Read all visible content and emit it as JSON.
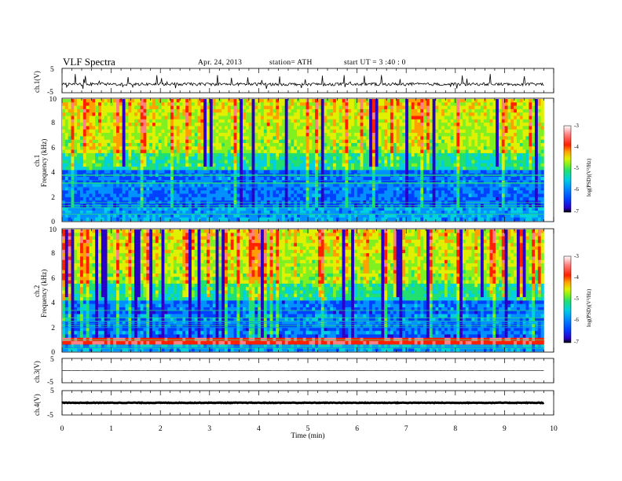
{
  "header": {
    "title": "VLF  Spectra",
    "date": "Apr. 24, 2013",
    "station": "station= ATH",
    "start": "start  UT  =   3  :40 : 0"
  },
  "colors": {
    "spectrum": [
      "#000000",
      "#2a00c8",
      "#0040ff",
      "#0090ff",
      "#00d0e0",
      "#20e070",
      "#80f020",
      "#e0f000",
      "#ffa000",
      "#ff2000",
      "#ff8080",
      "#ffffff"
    ]
  },
  "chart_data": [
    {
      "type": "line",
      "panel": "ch1",
      "ylabel": "ch.1(V)",
      "ylim": [
        -5,
        5
      ],
      "yticks": [
        "5",
        "-5"
      ],
      "x_unit": "min",
      "x_range": [
        0,
        9.8
      ],
      "baseline": -1.5
    },
    {
      "type": "heatmap",
      "panel": "ch1-spectrogram",
      "channel_label": "ch.1",
      "ylabel": "Frequency  (kHz)",
      "ylim": [
        0,
        10
      ],
      "yticks": [
        "0",
        "2",
        "4",
        "6",
        "8",
        "10"
      ],
      "x_range": [
        0,
        9.8
      ],
      "colorbar": {
        "label": "log(PSD)(V²/Hz)",
        "range": [
          -7,
          -3
        ],
        "ticks": [
          "-3",
          "-4",
          "-5",
          "-6",
          "-7"
        ]
      }
    },
    {
      "type": "heatmap",
      "panel": "ch2-spectrogram",
      "channel_label": "ch.2",
      "ylabel": "Frequency  (kHz)",
      "ylim": [
        0,
        10
      ],
      "yticks": [
        "0",
        "2",
        "4",
        "6",
        "8",
        "10"
      ],
      "x_range": [
        0,
        9.8
      ],
      "colorbar": {
        "label": "log(PSD)(V²/Hz)",
        "range": [
          -7,
          -3
        ],
        "ticks": [
          "-3",
          "-4",
          "-5",
          "-6",
          "-7"
        ]
      }
    },
    {
      "type": "line",
      "panel": "ch3",
      "ylabel": "ch.3(V)",
      "ylim": [
        -5,
        5
      ],
      "yticks": [
        "5",
        "-5"
      ],
      "x_range": [
        0,
        9.8
      ],
      "baseline": 0
    },
    {
      "type": "line",
      "panel": "ch4",
      "ylabel": "ch.4(V)",
      "ylim": [
        -5,
        5
      ],
      "yticks": [
        "5",
        "-5"
      ],
      "x_range": [
        0,
        9.8
      ],
      "baseline": 0
    }
  ],
  "xaxis": {
    "label": "Time  (min)",
    "ticks": [
      "0",
      "1",
      "2",
      "3",
      "4",
      "5",
      "6",
      "7",
      "8",
      "9",
      "10"
    ],
    "range": [
      0,
      10
    ]
  }
}
